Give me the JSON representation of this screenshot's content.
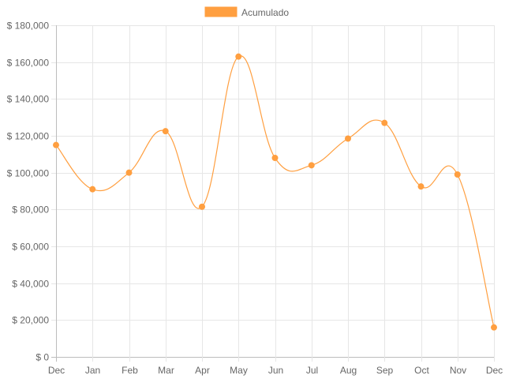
{
  "chart_data": {
    "type": "line",
    "title": "",
    "xlabel": "",
    "ylabel": "",
    "categories": [
      "Dec",
      "Jan",
      "Feb",
      "Mar",
      "Apr",
      "May",
      "Jun",
      "Jul",
      "Aug",
      "Sep",
      "Oct",
      "Nov",
      "Dec"
    ],
    "series": [
      {
        "name": "Acumulado",
        "color": "#ff9f40",
        "values": [
          115000,
          91000,
          100000,
          122500,
          81500,
          163000,
          108000,
          104000,
          118500,
          127000,
          92500,
          99000,
          16000
        ]
      }
    ],
    "ylim": [
      0,
      180000
    ],
    "y_ticks": [
      0,
      20000,
      40000,
      60000,
      80000,
      100000,
      120000,
      140000,
      160000,
      180000
    ],
    "y_tick_labels": [
      "$ 0",
      "$ 20,000",
      "$ 40,000",
      "$ 60,000",
      "$ 80,000",
      "$ 100,000",
      "$ 120,000",
      "$ 140,000",
      "$ 160,000",
      "$ 180,000"
    ],
    "grid": true,
    "legend_position": "top-center",
    "smooth": true
  }
}
